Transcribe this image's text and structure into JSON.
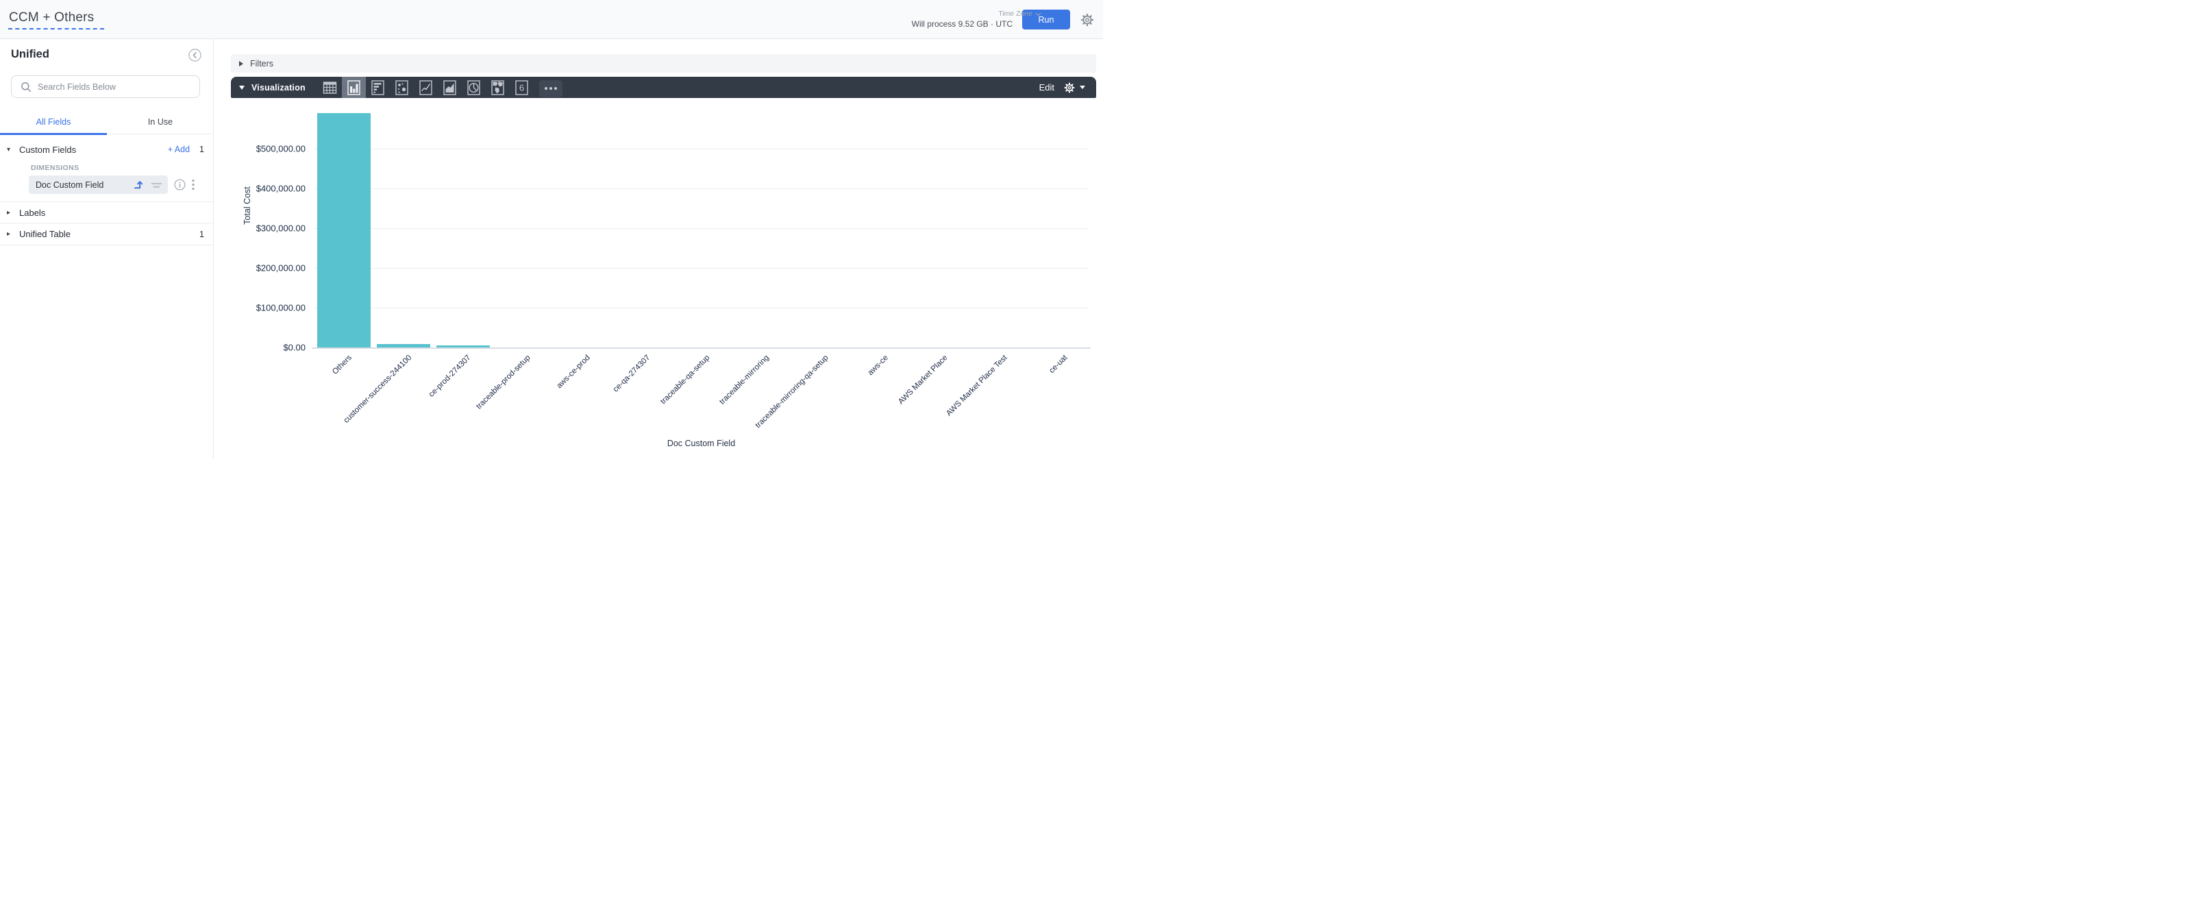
{
  "header": {
    "title": "CCM + Others",
    "timezone_label": "Time Zone",
    "process_estimate": "Will process 9.52 GB · UTC",
    "run_label": "Run",
    "accent_blue": "#3b77e3"
  },
  "sidebar": {
    "title": "Unified",
    "search_placeholder": "Search Fields Below",
    "tabs": [
      {
        "label": "All Fields",
        "active": true
      },
      {
        "label": "In Use",
        "active": false
      }
    ],
    "custom_fields": {
      "label": "Custom Fields",
      "add_label": "+ Add",
      "count": "1",
      "group_label": "DIMENSIONS",
      "field": {
        "label": "Doc Custom Field"
      }
    },
    "labels_section": {
      "label": "Labels"
    },
    "unified_table_section": {
      "label": "Unified Table",
      "count": "1"
    }
  },
  "main": {
    "filters_label": "Filters",
    "visualization_label": "Visualization",
    "edit_label": "Edit",
    "single_value_glyph": "6",
    "toolbar_icons": [
      {
        "name": "table-icon",
        "selected": false
      },
      {
        "name": "column-chart-icon",
        "selected": true
      },
      {
        "name": "bar-chart-icon",
        "selected": false
      },
      {
        "name": "scatter-chart-icon",
        "selected": false
      },
      {
        "name": "line-chart-icon",
        "selected": false
      },
      {
        "name": "area-chart-icon",
        "selected": false
      },
      {
        "name": "pie-chart-icon",
        "selected": false
      },
      {
        "name": "map-icon",
        "selected": false
      },
      {
        "name": "single-value-icon",
        "selected": false
      }
    ]
  },
  "chart_data": {
    "type": "bar",
    "title": "",
    "xlabel": "Doc Custom Field",
    "ylabel": "Total Cost",
    "categories": [
      "Others",
      "customer-success-244100",
      "ce-prod-274307",
      "traceable-prod-setup",
      "aws-ce-prod",
      "ce-qa-274307",
      "traceable-qa-setup",
      "traceable-mirroring",
      "traceable-mirroring-qa-setup",
      "aws-ce",
      "AWS Market Place",
      "AWS Market Place Test",
      "ce-uat"
    ],
    "values": [
      590000,
      9500,
      6000,
      850,
      700,
      620,
      540,
      480,
      430,
      390,
      300,
      260,
      210
    ],
    "y_ticks": [
      {
        "value": 0,
        "label": "$0.00"
      },
      {
        "value": 100000,
        "label": "$100,000.00"
      },
      {
        "value": 200000,
        "label": "$200,000.00"
      },
      {
        "value": 300000,
        "label": "$300,000.00"
      },
      {
        "value": 400000,
        "label": "$400,000.00"
      },
      {
        "value": 500000,
        "label": "$500,000.00"
      }
    ],
    "ylim": [
      0,
      610000
    ],
    "bar_color": "#58c3ce",
    "grid": true,
    "legend": false
  }
}
